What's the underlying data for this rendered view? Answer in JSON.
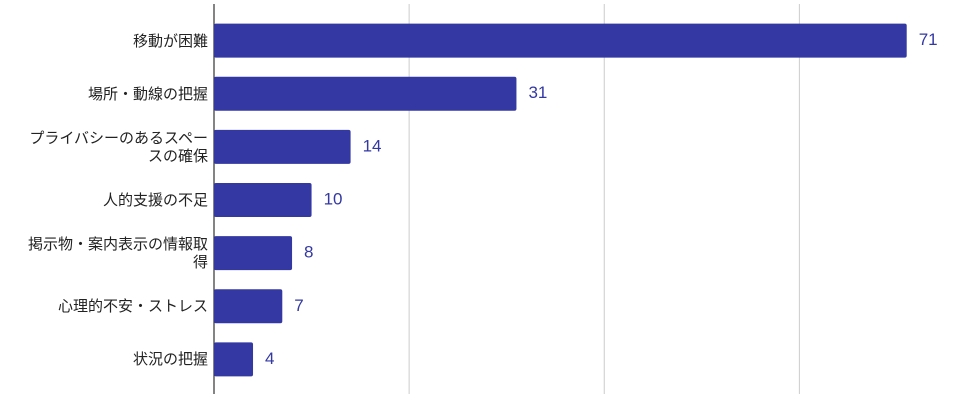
{
  "chart_data": {
    "type": "bar",
    "orientation": "horizontal",
    "categories": [
      "移動が困難",
      "場所・動線の把握",
      "プライバシーのあるスペースの確保",
      "人的支援の不足",
      "掲示物・案内表示の情報取得",
      "心理的不安・ストレス",
      "状況の把握"
    ],
    "values": [
      71,
      31,
      14,
      10,
      8,
      7,
      4
    ],
    "color": "#3338a2",
    "xlim": [
      0,
      78
    ],
    "xticks": [
      0,
      20,
      40,
      60
    ],
    "grid": true
  }
}
